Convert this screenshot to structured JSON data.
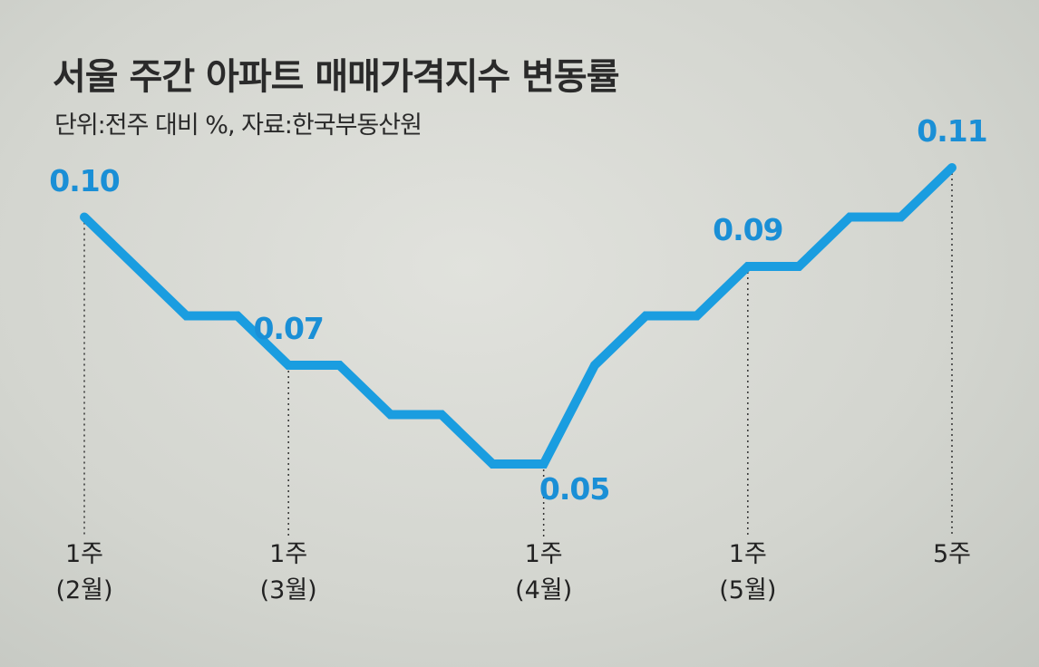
{
  "chart_data": {
    "type": "line",
    "title": "서울 주간 아파트 매매가격지수 변동률",
    "subtitle": "단위:전주 대비 %, 자료:한국부동산원",
    "categories": [
      "1주\n(2월)",
      null,
      null,
      null,
      "1주\n(3월)",
      null,
      null,
      null,
      null,
      "1주\n(4월)",
      null,
      null,
      null,
      "1주\n(5월)",
      null,
      null,
      null,
      "5주"
    ],
    "values": [
      0.1,
      0.09,
      0.08,
      0.08,
      0.07,
      0.07,
      0.06,
      0.06,
      0.05,
      0.05,
      0.07,
      0.08,
      0.08,
      0.09,
      0.09,
      0.1,
      0.1,
      0.11
    ],
    "value_labels": [
      "0.10",
      null,
      null,
      null,
      "0.07",
      null,
      null,
      null,
      null,
      "0.05",
      null,
      null,
      null,
      "0.09",
      null,
      null,
      null,
      "0.11"
    ],
    "color": "#1a9de0"
  }
}
